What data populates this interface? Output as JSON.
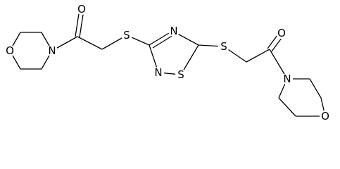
{
  "atoms": [
    "O",
    "N",
    "O",
    "S",
    "N",
    "N",
    "S",
    "S",
    "O",
    "N",
    "O"
  ]
}
